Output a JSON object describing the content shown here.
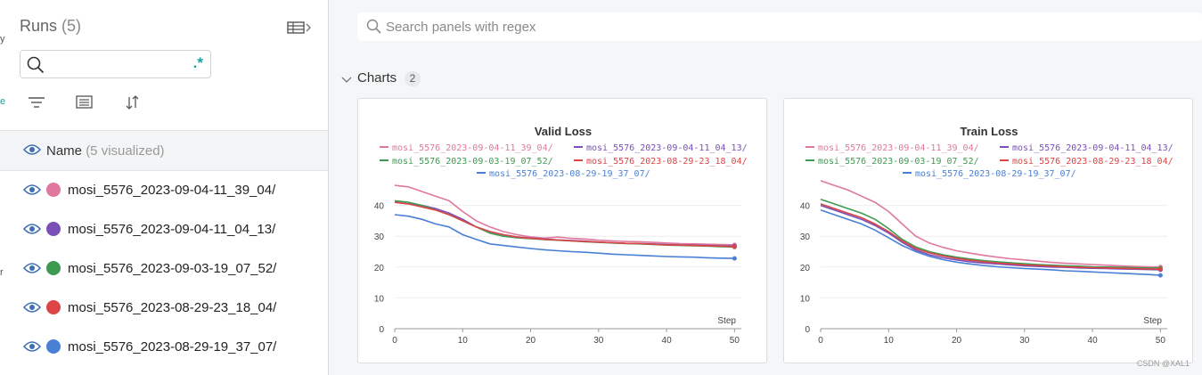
{
  "sidebar": {
    "title": "Runs",
    "count": "(5)",
    "search_value": "",
    "regex_label": ".*",
    "name_header": "Name",
    "name_header_sub": "(5 visualized)",
    "edge_marks": [
      "y",
      "e",
      "r"
    ],
    "runs": [
      {
        "name": "mosi_5576_2023-09-04-11_39_04/",
        "color": "#e0779f"
      },
      {
        "name": "mosi_5576_2023-09-04-11_04_13/",
        "color": "#7a4fb8"
      },
      {
        "name": "mosi_5576_2023-09-03-19_07_52/",
        "color": "#3e9a51"
      },
      {
        "name": "mosi_5576_2023-08-29-23_18_04/",
        "color": "#dc4446"
      },
      {
        "name": "mosi_5576_2023-08-29-19_37_07/",
        "color": "#4a7fd6"
      }
    ],
    "icons": [
      "table-toggle-icon",
      "search-icon",
      "filter-icon",
      "group-icon",
      "sort-icon",
      "eye-icon"
    ]
  },
  "main": {
    "search_placeholder": "Search panels with regex",
    "section_title": "Charts",
    "section_count": "2"
  },
  "watermark": "CSDN @XAL1",
  "chart_data": [
    {
      "type": "line",
      "title": "Valid Loss",
      "xlabel": "Step",
      "ylabel": "",
      "xlim": [
        0,
        51
      ],
      "ylim": [
        0,
        50
      ],
      "xticks": [
        0,
        10,
        20,
        30,
        40,
        50
      ],
      "yticks": [
        0,
        10,
        20,
        30,
        40
      ],
      "legend_position": "top",
      "series": [
        {
          "name": "mosi_5576_2023-09-04-11_39_04/",
          "color": "#e0779f",
          "x": [
            0,
            2,
            4,
            6,
            8,
            10,
            12,
            14,
            16,
            18,
            20,
            22,
            24,
            26,
            28,
            30,
            32,
            34,
            36,
            38,
            40,
            42,
            44,
            46,
            48,
            50
          ],
          "y": [
            46.5,
            46,
            44.5,
            43,
            41.5,
            38,
            35,
            33,
            31.5,
            30.5,
            29.8,
            29.4,
            29.7,
            29.3,
            29.1,
            28.7,
            28.5,
            28.3,
            28.2,
            28,
            27.8,
            27.6,
            27.5,
            27.4,
            27.3,
            27.2
          ]
        },
        {
          "name": "mosi_5576_2023-09-04-11_04_13/",
          "color": "#7a4fb8",
          "x": [
            0,
            2,
            4,
            6,
            8,
            10,
            12,
            14,
            16,
            18,
            20,
            22,
            24,
            26,
            28,
            30,
            32,
            34,
            36,
            38,
            40,
            42,
            44,
            46,
            48,
            50
          ],
          "y": [
            41,
            40.5,
            40,
            39,
            37.5,
            35.5,
            33,
            31.5,
            30.5,
            29.8,
            29.4,
            29.1,
            28.8,
            28.6,
            28.4,
            28.1,
            27.9,
            27.7,
            27.6,
            27.5,
            27.3,
            27.2,
            27.1,
            27,
            26.9,
            26.8
          ]
        },
        {
          "name": "mosi_5576_2023-09-03-19_07_52/",
          "color": "#3e9a51",
          "x": [
            0,
            2,
            4,
            6,
            8,
            10,
            12,
            14,
            16,
            18,
            20,
            22,
            24,
            26,
            28,
            30,
            32,
            34,
            36,
            38,
            40,
            42,
            44,
            46,
            48,
            50
          ],
          "y": [
            41.5,
            41,
            40,
            38.5,
            37,
            35,
            33,
            31,
            30,
            29.5,
            29.2,
            28.9,
            28.7,
            28.5,
            28.2,
            28,
            27.8,
            27.6,
            27.5,
            27.3,
            27.1,
            27,
            26.9,
            26.8,
            26.6,
            26.5
          ]
        },
        {
          "name": "mosi_5576_2023-08-29-23_18_04/",
          "color": "#dc4446",
          "x": [
            0,
            2,
            4,
            6,
            8,
            10,
            12,
            14,
            16,
            18,
            20,
            22,
            24,
            26,
            28,
            30,
            32,
            34,
            36,
            38,
            40,
            42,
            44,
            46,
            48,
            50
          ],
          "y": [
            41,
            40.5,
            39.5,
            38.5,
            37,
            35,
            33,
            31.5,
            30.5,
            29.7,
            29.3,
            29,
            28.8,
            28.5,
            28.3,
            28.1,
            27.9,
            27.7,
            27.6,
            27.4,
            27.2,
            27.1,
            27,
            26.9,
            26.8,
            26.6
          ]
        },
        {
          "name": "mosi_5576_2023-08-29-19_37_07/",
          "color": "#4a7fd6",
          "x": [
            0,
            2,
            4,
            6,
            8,
            10,
            12,
            14,
            16,
            18,
            20,
            22,
            24,
            26,
            28,
            30,
            32,
            34,
            36,
            38,
            40,
            42,
            44,
            46,
            48,
            50
          ],
          "y": [
            37,
            36.5,
            35.5,
            34,
            33,
            30.5,
            29,
            27.5,
            27,
            26.5,
            26,
            25.6,
            25.3,
            25,
            24.8,
            24.5,
            24.2,
            24,
            23.8,
            23.6,
            23.4,
            23.3,
            23.2,
            23,
            22.9,
            22.8
          ]
        }
      ]
    },
    {
      "type": "line",
      "title": "Train Loss",
      "xlabel": "Step",
      "ylabel": "",
      "xlim": [
        0,
        51
      ],
      "ylim": [
        0,
        50
      ],
      "xticks": [
        0,
        10,
        20,
        30,
        40,
        50
      ],
      "yticks": [
        0,
        10,
        20,
        30,
        40
      ],
      "legend_position": "top",
      "series": [
        {
          "name": "mosi_5576_2023-09-04-11_39_04/",
          "color": "#e0779f",
          "x": [
            0,
            2,
            4,
            6,
            8,
            10,
            12,
            14,
            16,
            18,
            20,
            22,
            24,
            26,
            28,
            30,
            32,
            34,
            36,
            38,
            40,
            42,
            44,
            46,
            48,
            50
          ],
          "y": [
            48,
            46.5,
            45,
            43,
            41,
            38,
            34,
            30,
            27.8,
            26.4,
            25.3,
            24.5,
            23.8,
            23.2,
            22.7,
            22.3,
            21.9,
            21.5,
            21.2,
            21,
            20.8,
            20.6,
            20.4,
            20.2,
            20.1,
            20
          ]
        },
        {
          "name": "mosi_5576_2023-09-04-11_04_13/",
          "color": "#7a4fb8",
          "x": [
            0,
            2,
            4,
            6,
            8,
            10,
            12,
            14,
            16,
            18,
            20,
            22,
            24,
            26,
            28,
            30,
            32,
            34,
            36,
            38,
            40,
            42,
            44,
            46,
            48,
            50
          ],
          "y": [
            40,
            38.5,
            37,
            35.5,
            33.5,
            31,
            28,
            25.5,
            24,
            23,
            22.3,
            21.7,
            21.3,
            21,
            20.7,
            20.4,
            20.2,
            20,
            19.9,
            19.7,
            19.6,
            19.5,
            19.4,
            19.3,
            19.2,
            19.1
          ]
        },
        {
          "name": "mosi_5576_2023-09-03-19_07_52/",
          "color": "#3e9a51",
          "x": [
            0,
            2,
            4,
            6,
            8,
            10,
            12,
            14,
            16,
            18,
            20,
            22,
            24,
            26,
            28,
            30,
            32,
            34,
            36,
            38,
            40,
            42,
            44,
            46,
            48,
            50
          ],
          "y": [
            42,
            40.5,
            39,
            37.5,
            35.5,
            32.5,
            29,
            26.5,
            25,
            24,
            23.2,
            22.6,
            22.1,
            21.7,
            21.4,
            21.1,
            20.8,
            20.6,
            20.4,
            20.3,
            20.1,
            20,
            19.9,
            19.8,
            19.7,
            19.6
          ]
        },
        {
          "name": "mosi_5576_2023-08-29-23_18_04/",
          "color": "#dc4446",
          "x": [
            0,
            2,
            4,
            6,
            8,
            10,
            12,
            14,
            16,
            18,
            20,
            22,
            24,
            26,
            28,
            30,
            32,
            34,
            36,
            38,
            40,
            42,
            44,
            46,
            48,
            50
          ],
          "y": [
            40.5,
            39,
            37.5,
            36,
            34,
            31.5,
            28.5,
            26,
            24.6,
            23.6,
            22.8,
            22.2,
            21.7,
            21.3,
            21,
            20.7,
            20.5,
            20.3,
            20.1,
            19.9,
            19.8,
            19.7,
            19.6,
            19.5,
            19.4,
            19.3
          ]
        },
        {
          "name": "mosi_5576_2023-08-29-19_37_07/",
          "color": "#4a7fd6",
          "x": [
            0,
            2,
            4,
            6,
            8,
            10,
            12,
            14,
            16,
            18,
            20,
            22,
            24,
            26,
            28,
            30,
            32,
            34,
            36,
            38,
            40,
            42,
            44,
            46,
            48,
            50
          ],
          "y": [
            38.5,
            37,
            35.5,
            34,
            32,
            29.5,
            27,
            25,
            23.5,
            22.4,
            21.6,
            21,
            20.5,
            20.1,
            19.8,
            19.5,
            19.3,
            19.1,
            18.8,
            18.6,
            18.4,
            18.2,
            18,
            17.8,
            17.6,
            17.3
          ]
        }
      ]
    }
  ]
}
